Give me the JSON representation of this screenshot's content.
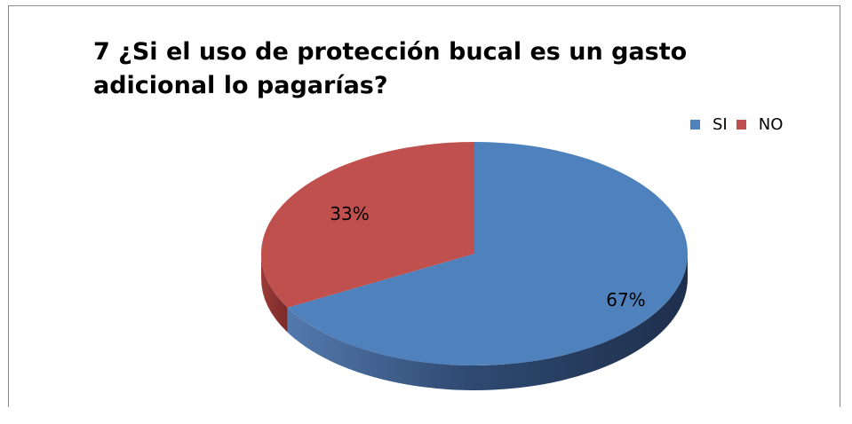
{
  "chart_data": {
    "type": "pie",
    "title": "7   ¿Si el uso de protección bucal es un gasto adicional lo pagarías?",
    "categories": [
      "SI",
      "NO"
    ],
    "values": [
      67,
      33
    ],
    "data_labels": [
      "67%",
      "33%"
    ],
    "colors": [
      "#4F81BD",
      "#C0504D"
    ],
    "legend_position": "top-right",
    "style": "3d"
  }
}
